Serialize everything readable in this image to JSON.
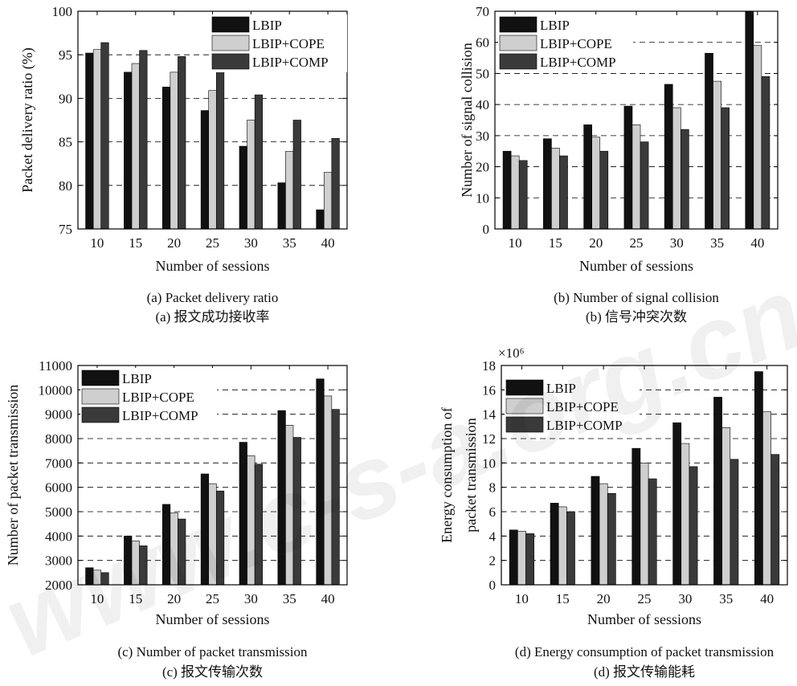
{
  "watermark": "www.c-s-a.org.cn",
  "series_colors": [
    "#111111",
    "#cfcfcf",
    "#3a3a3a"
  ],
  "chart_data": [
    {
      "type": "bar",
      "panel": "a",
      "categories": [
        "10",
        "15",
        "20",
        "25",
        "30",
        "35",
        "40"
      ],
      "series": [
        {
          "name": "LBIP",
          "values": [
            95.2,
            93.0,
            91.3,
            88.6,
            84.5,
            80.3,
            77.2
          ]
        },
        {
          "name": "LBIP+COPE",
          "values": [
            95.6,
            94.0,
            93.0,
            90.9,
            87.5,
            83.9,
            81.5
          ]
        },
        {
          "name": "LBIP+COMP",
          "values": [
            96.4,
            95.5,
            94.8,
            93.3,
            90.4,
            87.5,
            85.4
          ]
        }
      ],
      "xlabel": "Number of sessions",
      "ylabel": "Packet delivery ratio (%)",
      "ylim": [
        75,
        100
      ],
      "yticks": [
        "75",
        "80",
        "85",
        "90",
        "95",
        "100"
      ],
      "exponent": "",
      "legend": "top-right",
      "grid": "dashed horizontal",
      "caption_en": "(a) Packet delivery ratio",
      "caption_zh": "(a)  报文成功接收率"
    },
    {
      "type": "bar",
      "panel": "b",
      "categories": [
        "10",
        "15",
        "20",
        "25",
        "30",
        "35",
        "40"
      ],
      "series": [
        {
          "name": "LBIP",
          "values": [
            25,
            29,
            33.5,
            39.5,
            46.5,
            56.5,
            70
          ]
        },
        {
          "name": "LBIP+COPE",
          "values": [
            23.5,
            26,
            29.5,
            33.5,
            39,
            47.5,
            59
          ]
        },
        {
          "name": "LBIP+COMP",
          "values": [
            22,
            23.5,
            25,
            28,
            32,
            39,
            49
          ]
        }
      ],
      "xlabel": "Number of sessions",
      "ylabel": "Number of signal collision",
      "ylim": [
        0,
        70
      ],
      "yticks": [
        "0",
        "10",
        "20",
        "30",
        "40",
        "50",
        "60",
        "70"
      ],
      "exponent": "",
      "legend": "top-left",
      "grid": "dashed horizontal",
      "caption_en": "(b) Number of signal collision",
      "caption_zh": "(b)  信号冲突次数"
    },
    {
      "type": "bar",
      "panel": "c",
      "categories": [
        "10",
        "15",
        "20",
        "25",
        "30",
        "35",
        "40"
      ],
      "series": [
        {
          "name": "LBIP",
          "values": [
            2700,
            4000,
            5300,
            6550,
            7850,
            9150,
            10450
          ]
        },
        {
          "name": "LBIP+COPE",
          "values": [
            2600,
            3800,
            4950,
            6150,
            7300,
            8550,
            9750
          ]
        },
        {
          "name": "LBIP+COMP",
          "values": [
            2500,
            3600,
            4700,
            5850,
            6950,
            8050,
            9200
          ]
        }
      ],
      "xlabel": "Number of sessions",
      "ylabel": "Number of packet transmission",
      "ylim": [
        2000,
        11000
      ],
      "yticks": [
        "2000",
        "3000",
        "4000",
        "5000",
        "6000",
        "7000",
        "8000",
        "9000",
        "10000",
        "11000"
      ],
      "exponent": "",
      "legend": "top-left",
      "grid": "dashed horizontal",
      "caption_en": "(c) Number of packet transmission",
      "caption_zh": "(c)  报文传输次数"
    },
    {
      "type": "bar",
      "panel": "d",
      "categories": [
        "10",
        "15",
        "20",
        "25",
        "30",
        "35",
        "40"
      ],
      "series": [
        {
          "name": "LBIP",
          "values": [
            4.5,
            6.7,
            8.9,
            11.2,
            13.3,
            15.4,
            17.5
          ]
        },
        {
          "name": "LBIP+COPE",
          "values": [
            4.4,
            6.4,
            8.3,
            10.0,
            11.6,
            12.9,
            14.2
          ]
        },
        {
          "name": "LBIP+COMP",
          "values": [
            4.2,
            6.0,
            7.5,
            8.7,
            9.7,
            10.3,
            10.7
          ]
        }
      ],
      "xlabel": "Number of sessions",
      "ylabel": "Energy consumption of packet transmission",
      "ylabel_lines": [
        "Energy consumption of",
        "packet transmission"
      ],
      "ylim": [
        0,
        18
      ],
      "yticks": [
        "0",
        "2",
        "4",
        "6",
        "8",
        "10",
        "12",
        "14",
        "16",
        "18"
      ],
      "exponent": "×10⁶",
      "legend": "top-left",
      "grid": "dashed horizontal",
      "caption_en": "(d) Energy consumption of packet transmission",
      "caption_zh": "(d)  报文传输能耗"
    }
  ]
}
